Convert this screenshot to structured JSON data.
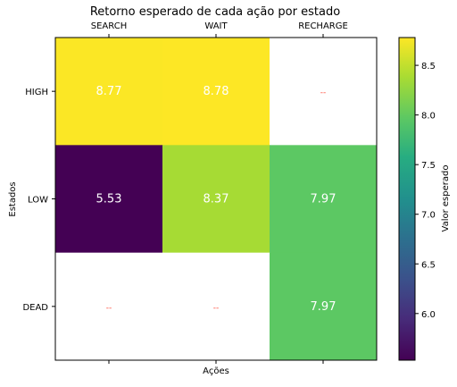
{
  "chart_data": {
    "type": "heatmap",
    "title": "Retorno esperado de cada ação por estado",
    "xlabel": "Ações",
    "ylabel": "Estados",
    "x_categories": [
      "SEARCH",
      "WAIT",
      "RECHARGE"
    ],
    "y_categories": [
      "HIGH",
      "LOW",
      "DEAD"
    ],
    "values": [
      [
        8.77,
        8.78,
        null
      ],
      [
        5.53,
        8.37,
        7.97
      ],
      [
        null,
        null,
        7.97
      ]
    ],
    "cell_labels": [
      [
        "8.77",
        "8.78",
        "--"
      ],
      [
        "5.53",
        "8.37",
        "7.97"
      ],
      [
        "--",
        "--",
        "7.97"
      ]
    ],
    "missing_label_color": "#ff4c3b",
    "cell_label_color": "#ffffff",
    "colormap": "viridis",
    "colorbar": {
      "label": "Valor esperado",
      "min": 5.53,
      "max": 8.78,
      "ticks": [
        6.0,
        6.5,
        7.0,
        7.5,
        8.0,
        8.5
      ],
      "tick_labels": [
        "6.0",
        "6.5",
        "7.0",
        "7.5",
        "8.0",
        "8.5"
      ]
    },
    "x_ticks_position": "top",
    "grid": false
  }
}
